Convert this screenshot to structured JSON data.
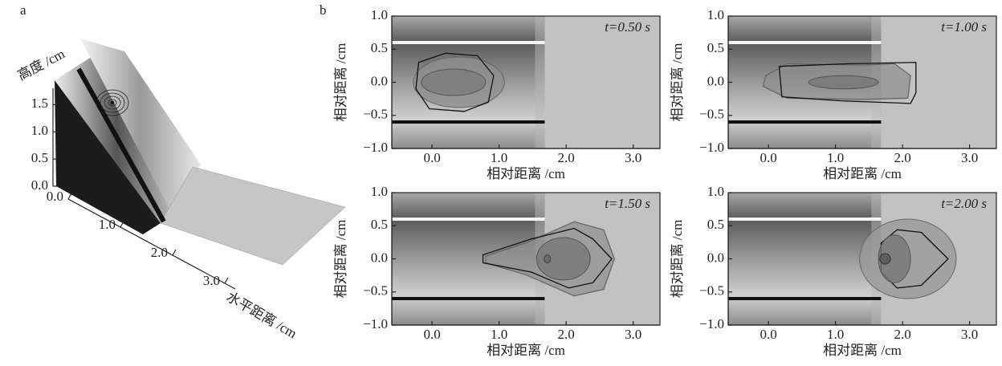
{
  "panel_labels": [
    "a",
    "b"
  ],
  "chart_data": [
    {
      "type": "surface3d",
      "zlabel": "高度 /cm",
      "xlabel": "水平距离 /cm",
      "zlim": [
        0,
        1.8
      ],
      "zticks": [
        {
          "value": 0,
          "label": "0.0"
        },
        {
          "value": 0.5,
          "label": "0.5"
        },
        {
          "value": 1,
          "label": "1.0"
        },
        {
          "value": 1.5,
          "label": "1.5"
        }
      ],
      "xlim": [
        0,
        3.2
      ],
      "xticks": [
        {
          "value": 0,
          "label": "0.0"
        },
        {
          "value": 1,
          "label": "1.0"
        },
        {
          "value": 2,
          "label": "2.0"
        },
        {
          "value": 3,
          "label": "3.0"
        }
      ]
    },
    {
      "type": "contour",
      "annotation": "t=0.50 s",
      "xlabel": "相对距离 /cm",
      "ylabel": "相对距离 /cm",
      "xlim": [
        -0.6,
        3.4
      ],
      "ylim": [
        -1,
        1
      ],
      "xticks": [
        {
          "value": 0,
          "label": "0.0"
        },
        {
          "value": 1,
          "label": "1.0"
        },
        {
          "value": 2,
          "label": "2.0"
        },
        {
          "value": 3,
          "label": "3.0"
        }
      ],
      "yticks": [
        {
          "value": 1,
          "label": "1.0"
        },
        {
          "value": 0.5,
          "label": "0.5"
        },
        {
          "value": 0,
          "label": "0.0"
        },
        {
          "value": -0.5,
          "label": "−0.5"
        },
        {
          "value": -1,
          "label": "−1.0"
        }
      ]
    },
    {
      "type": "contour",
      "annotation": "t=1.00 s",
      "xlabel": "相对距离 /cm",
      "ylabel": "相对距离 /cm",
      "xlim": [
        -0.6,
        3.4
      ],
      "ylim": [
        -1,
        1
      ],
      "xticks": [
        {
          "value": 0,
          "label": "0.0"
        },
        {
          "value": 1,
          "label": "1.0"
        },
        {
          "value": 2,
          "label": "2.0"
        },
        {
          "value": 3,
          "label": "3.0"
        }
      ],
      "yticks": [
        {
          "value": 1,
          "label": "1.0"
        },
        {
          "value": 0.5,
          "label": "0.5"
        },
        {
          "value": 0,
          "label": "0.0"
        },
        {
          "value": -0.5,
          "label": "−0.5"
        },
        {
          "value": -1,
          "label": "−1.0"
        }
      ]
    },
    {
      "type": "contour",
      "annotation": "t=1.50 s",
      "xlabel": "相对距离 /cm",
      "ylabel": "相对距离 /cm",
      "xlim": [
        -0.6,
        3.4
      ],
      "ylim": [
        -1,
        1
      ],
      "xticks": [
        {
          "value": 0,
          "label": "0.0"
        },
        {
          "value": 1,
          "label": "1.0"
        },
        {
          "value": 2,
          "label": "2.0"
        },
        {
          "value": 3,
          "label": "3.0"
        }
      ],
      "yticks": [
        {
          "value": 1,
          "label": "1.0"
        },
        {
          "value": 0.5,
          "label": "0.5"
        },
        {
          "value": 0,
          "label": "0.0"
        },
        {
          "value": -0.5,
          "label": "−0.5"
        },
        {
          "value": -1,
          "label": "−1.0"
        }
      ]
    },
    {
      "type": "contour",
      "annotation": "t=2.00 s",
      "xlabel": "相对距离 /cm",
      "ylabel": "相对距离 /cm",
      "xlim": [
        -0.6,
        3.4
      ],
      "ylim": [
        -1,
        1
      ],
      "xticks": [
        {
          "value": 0,
          "label": "0.0"
        },
        {
          "value": 1,
          "label": "1.0"
        },
        {
          "value": 2,
          "label": "2.0"
        },
        {
          "value": 3,
          "label": "3.0"
        }
      ],
      "yticks": [
        {
          "value": 1,
          "label": "1.0"
        },
        {
          "value": 0.5,
          "label": "0.5"
        },
        {
          "value": 0,
          "label": "0.0"
        },
        {
          "value": -0.5,
          "label": "−0.5"
        },
        {
          "value": -1,
          "label": "−1.0"
        }
      ]
    }
  ]
}
